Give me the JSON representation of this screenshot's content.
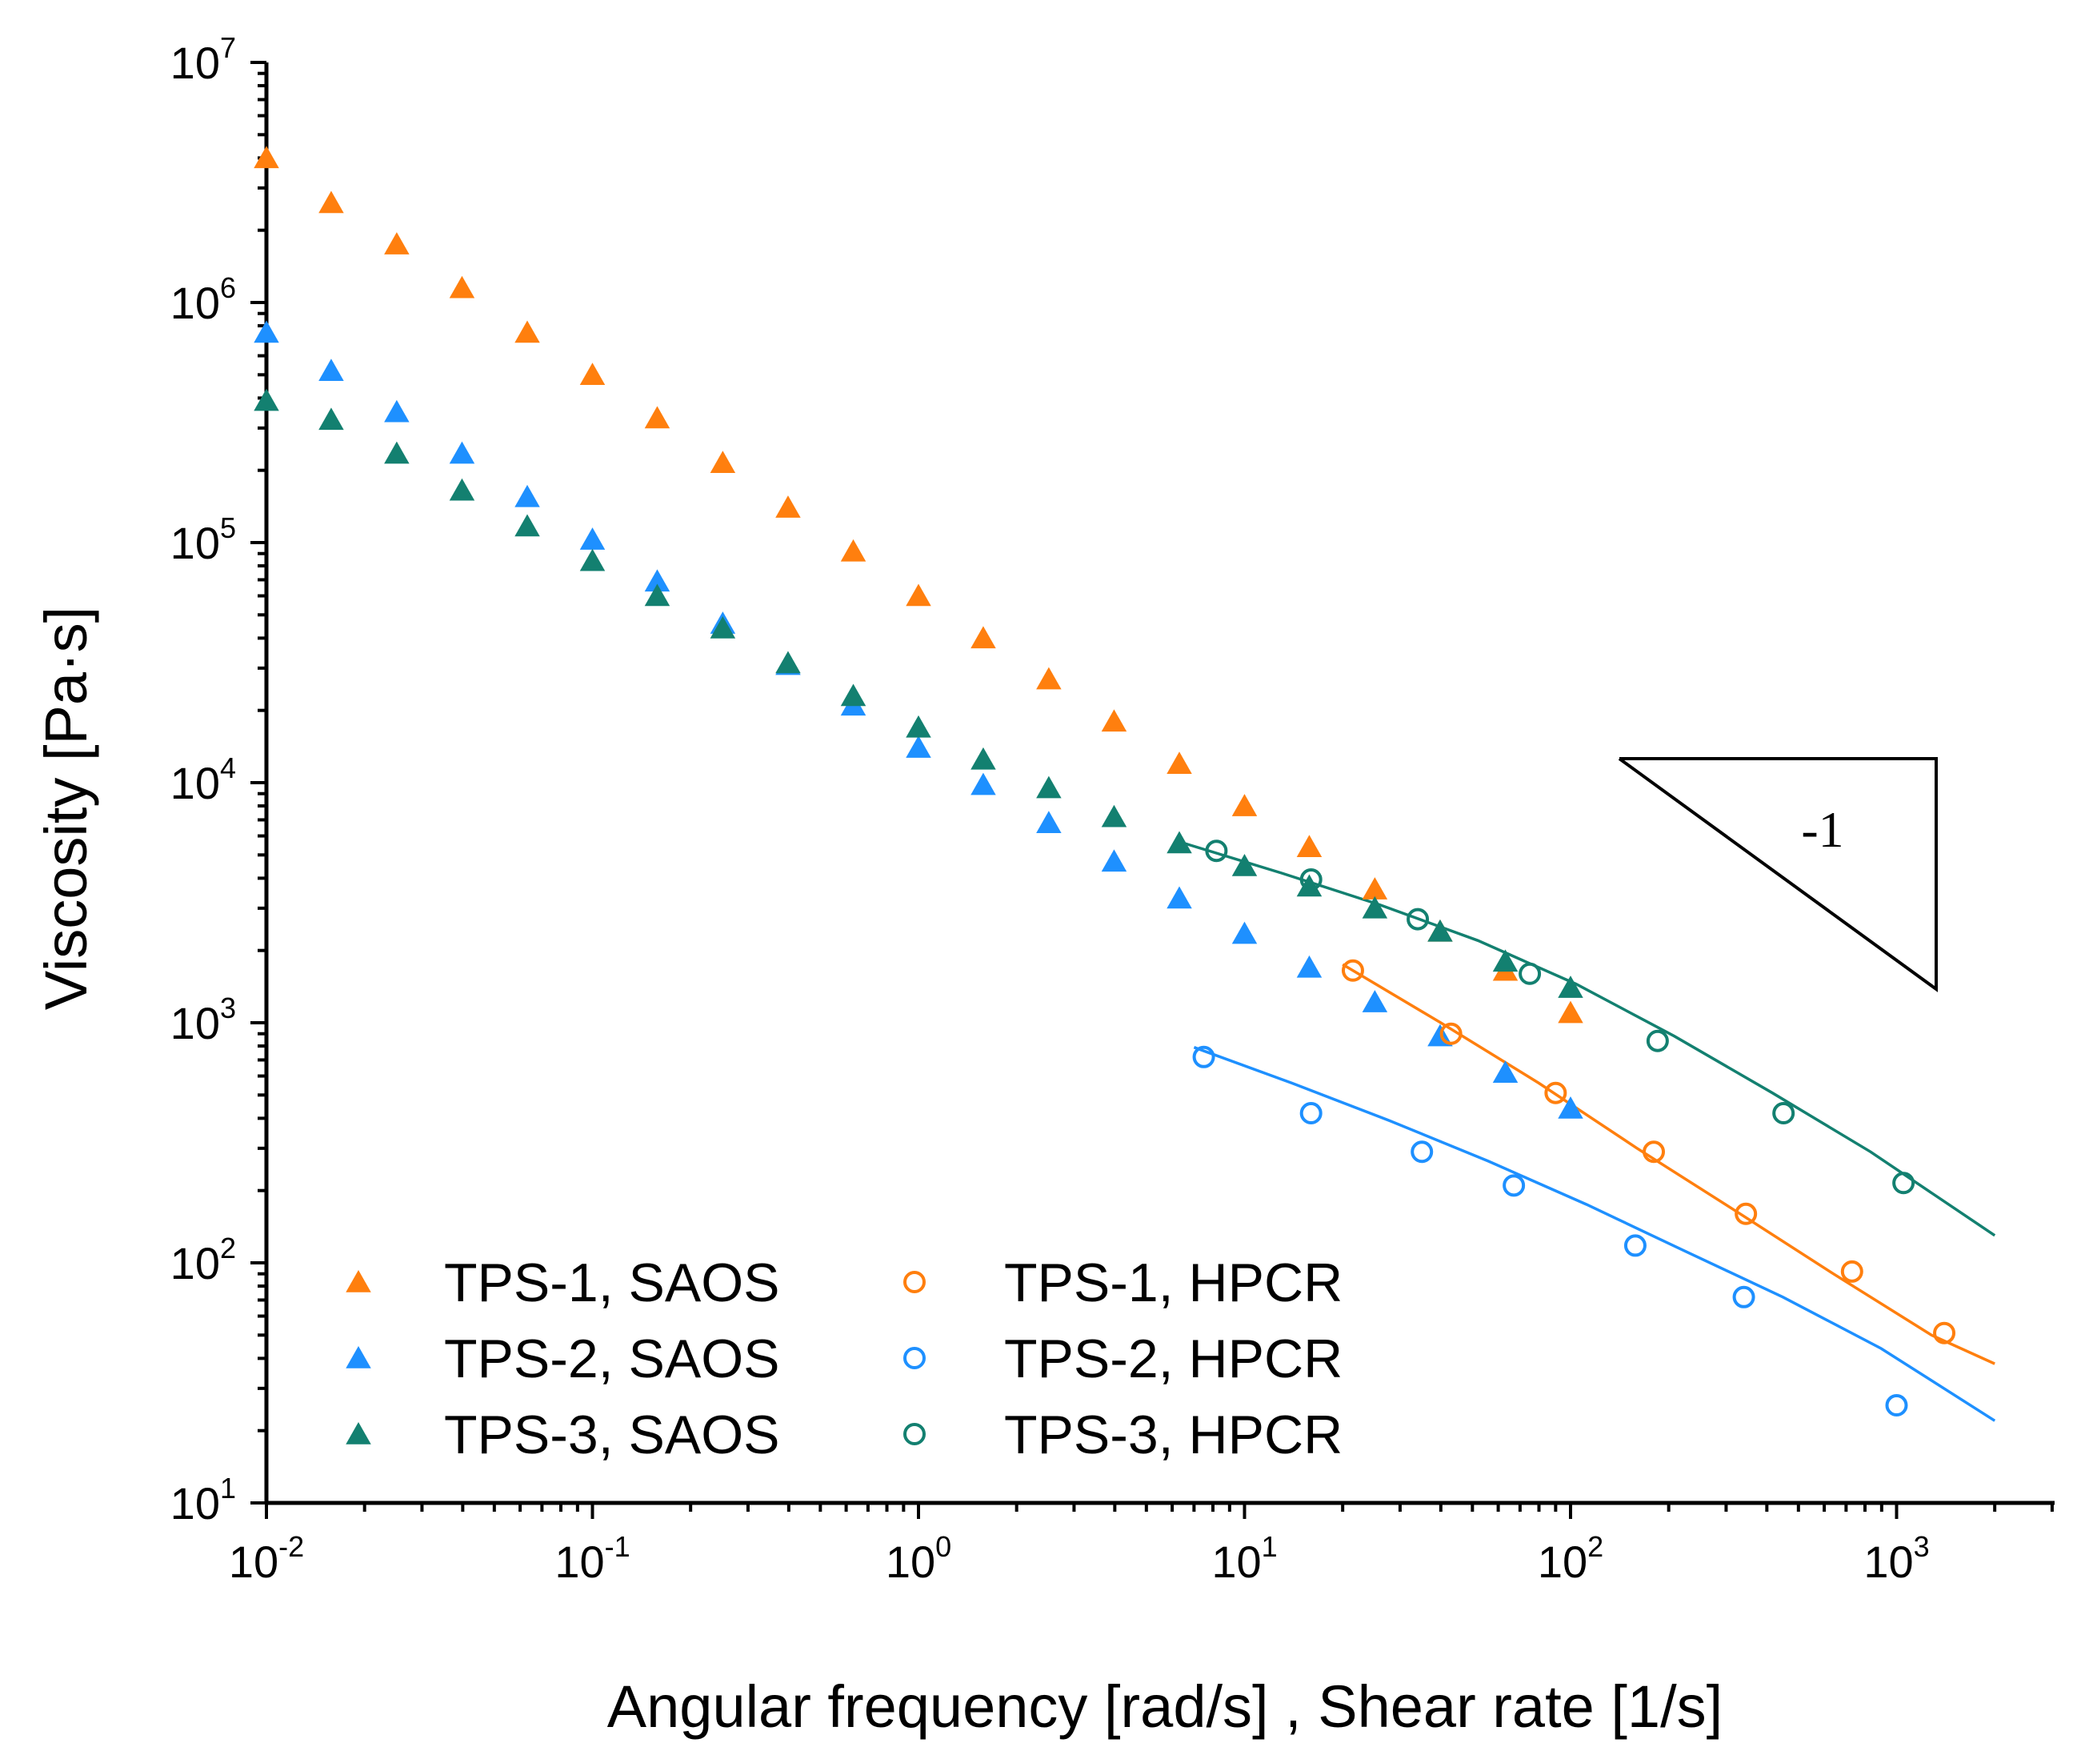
{
  "chart_data": {
    "type": "scatter",
    "title": "",
    "xlabel": "Angular frequency [rad/s] , Shear rate [1/s]",
    "ylabel": "Viscosity [Pa·s]",
    "xscale": "log",
    "yscale": "log",
    "xlim": [
      0.01,
      3500
    ],
    "ylim": [
      10,
      10000000
    ],
    "x_ticks": [
      {
        "base": "10",
        "exp": "-2",
        "value": 0.01
      },
      {
        "base": "10",
        "exp": "-1",
        "value": 0.1
      },
      {
        "base": "10",
        "exp": "0",
        "value": 1
      },
      {
        "base": "10",
        "exp": "1",
        "value": 10
      },
      {
        "base": "10",
        "exp": "2",
        "value": 100
      },
      {
        "base": "10",
        "exp": "3",
        "value": 1000
      }
    ],
    "y_ticks": [
      {
        "base": "10",
        "exp": "1",
        "value": 10
      },
      {
        "base": "10",
        "exp": "2",
        "value": 100
      },
      {
        "base": "10",
        "exp": "3",
        "value": 1000
      },
      {
        "base": "10",
        "exp": "4",
        "value": 10000
      },
      {
        "base": "10",
        "exp": "5",
        "value": 100000
      },
      {
        "base": "10",
        "exp": "6",
        "value": 1000000
      },
      {
        "base": "10",
        "exp": "7",
        "value": 10000000
      }
    ],
    "legend_position": "bottom-left",
    "series": [
      {
        "name": "TPS-1, SAOS",
        "marker": "triangle",
        "color": "#FF7F0E",
        "x": [
          0.01,
          0.0158,
          0.0251,
          0.0398,
          0.0631,
          0.1,
          0.158,
          0.251,
          0.398,
          0.631,
          1,
          1.58,
          2.51,
          3.98,
          6.31,
          10,
          15.8,
          25.1,
          39.8,
          63.1,
          100
        ],
        "y": [
          4000000,
          2600000,
          1750000,
          1150000,
          750000,
          500000,
          330000,
          215000,
          140000,
          92000,
          60000,
          40000,
          27000,
          18000,
          12000,
          8000,
          5400,
          3600,
          2400,
          1650,
          1100
        ]
      },
      {
        "name": "TPS-2, SAOS",
        "marker": "triangle",
        "color": "#1E90FF",
        "x": [
          0.01,
          0.0158,
          0.0251,
          0.0398,
          0.0631,
          0.1,
          0.158,
          0.251,
          0.398,
          0.631,
          1,
          1.58,
          2.51,
          3.98,
          6.31,
          10,
          15.8,
          25.1,
          39.8,
          63.1,
          100
        ],
        "y": [
          750000,
          520000,
          350000,
          235000,
          155000,
          103000,
          69000,
          46000,
          31000,
          21000,
          14000,
          9800,
          6800,
          4700,
          3300,
          2350,
          1700,
          1220,
          880,
          620,
          440
        ]
      },
      {
        "name": "TPS-3, SAOS",
        "marker": "triangle",
        "color": "#138070",
        "x": [
          0.01,
          0.0158,
          0.0251,
          0.0398,
          0.0631,
          0.1,
          0.158,
          0.251,
          0.398,
          0.631,
          1,
          1.58,
          2.51,
          3.98,
          6.31,
          10,
          15.8,
          25.1,
          39.8,
          63.1,
          100
        ],
        "y": [
          390000,
          325000,
          235000,
          165000,
          117000,
          84000,
          60000,
          44000,
          31500,
          23000,
          17000,
          12500,
          9500,
          7200,
          5600,
          4500,
          3700,
          3000,
          2400,
          1800,
          1400
        ]
      },
      {
        "name": "TPS-1, HPCR",
        "marker": "circle",
        "color": "#FF7F0E",
        "x": [
          21.5,
          43,
          90,
          180,
          345,
          730,
          1400
        ],
        "y": [
          1650,
          900,
          510,
          290,
          160,
          92,
          51
        ]
      },
      {
        "name": "TPS-2, HPCR",
        "marker": "circle",
        "color": "#1E90FF",
        "x": [
          7.5,
          16,
          35,
          67,
          158,
          340,
          1000
        ],
        "y": [
          720,
          420,
          290,
          210,
          118,
          72,
          25.5
        ]
      },
      {
        "name": "TPS-3, HPCR",
        "marker": "circle",
        "color": "#138070",
        "x": [
          8.2,
          16,
          34,
          75,
          185,
          450,
          1050
        ],
        "y": [
          5200,
          3950,
          2700,
          1600,
          840,
          420,
          215
        ]
      }
    ],
    "fit_lines": [
      {
        "name": "TPS-1, HPCR fit",
        "color": "#FF7F0E",
        "x": [
          20,
          40,
          80,
          160,
          320,
          640,
          1280,
          2000
        ],
        "y": [
          1750,
          1000,
          560,
          300,
          165,
          90,
          50,
          38
        ]
      },
      {
        "name": "TPS-2, HPCR fit",
        "color": "#1E90FF",
        "x": [
          7,
          14,
          28,
          56,
          112,
          224,
          448,
          896,
          2000
        ],
        "y": [
          790,
          560,
          390,
          265,
          175,
          112,
          72,
          44,
          22
        ]
      },
      {
        "name": "TPS-3, HPCR fit",
        "color": "#138070",
        "x": [
          6.5,
          13,
          26,
          52,
          104,
          208,
          416,
          832,
          2000
        ],
        "y": [
          5600,
          4200,
          3100,
          2200,
          1450,
          880,
          510,
          290,
          130
        ]
      }
    ],
    "annotations": [
      {
        "type": "slope-triangle",
        "text": "-1"
      }
    ]
  }
}
